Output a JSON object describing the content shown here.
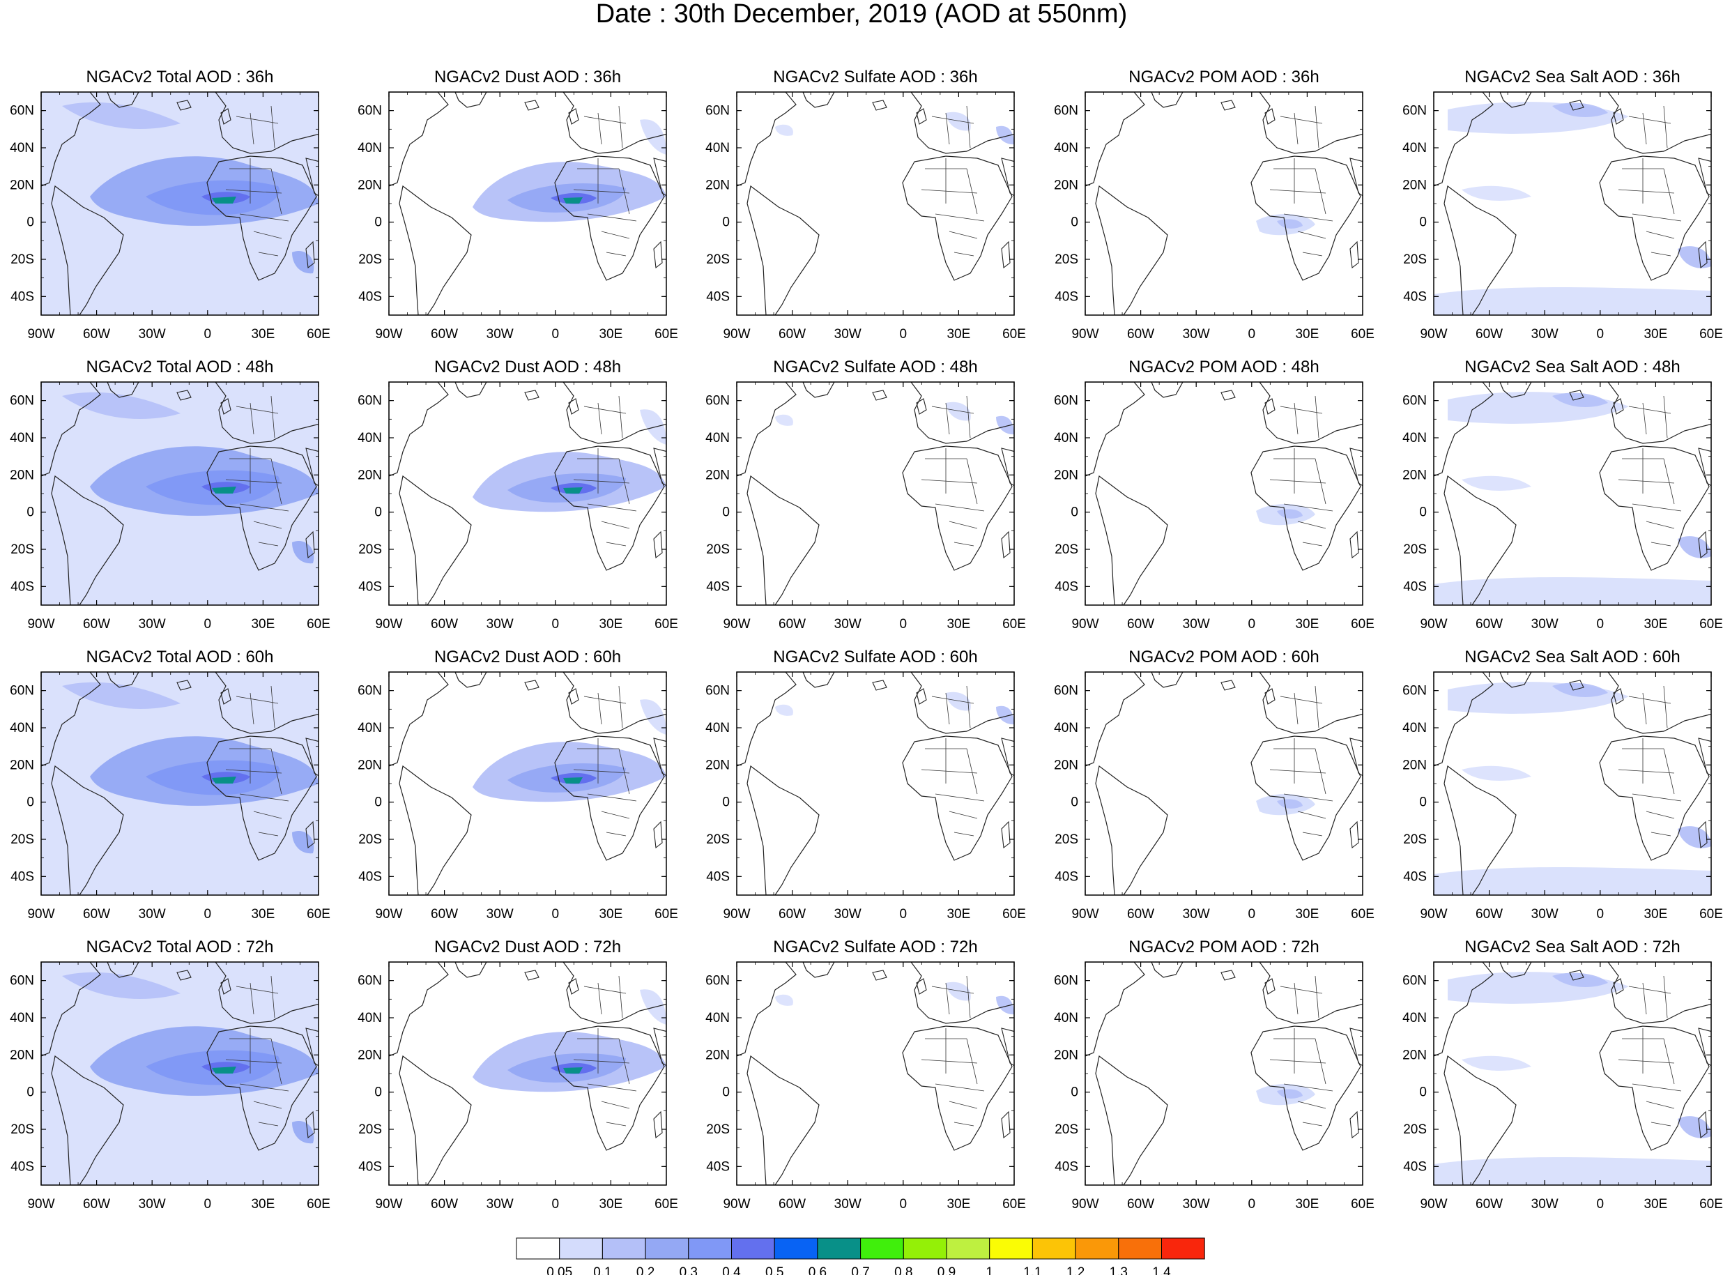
{
  "figure": {
    "title": "Date : 30th December, 2019 (AOD at 550nm)"
  },
  "panel_titles": [
    [
      "NGACv2 Total AOD : 36h",
      "NGACv2 Dust AOD : 36h",
      "NGACv2 Sulfate AOD : 36h",
      "NGACv2 POM AOD : 36h",
      "NGACv2 Sea Salt AOD : 36h"
    ],
    [
      "NGACv2 Total AOD : 48h",
      "NGACv2 Dust AOD : 48h",
      "NGACv2 Sulfate AOD : 48h",
      "NGACv2 POM AOD : 48h",
      "NGACv2 Sea Salt AOD : 48h"
    ],
    [
      "NGACv2 Total AOD : 60h",
      "NGACv2 Dust AOD : 60h",
      "NGACv2 Sulfate AOD : 60h",
      "NGACv2 POM AOD : 60h",
      "NGACv2 Sea Salt AOD : 60h"
    ],
    [
      "NGACv2 Total AOD : 72h",
      "NGACv2 Dust AOD : 72h",
      "NGACv2 Sulfate AOD : 72h",
      "NGACv2 POM AOD : 72h",
      "NGACv2 Sea Salt  AOD : 72h"
    ]
  ],
  "map_axes": {
    "lon_ticks": [
      "90W",
      "60W",
      "30W",
      "0",
      "30E",
      "60E"
    ],
    "lat_ticks": [
      "60N",
      "40N",
      "20N",
      "0",
      "20S",
      "40S"
    ],
    "lon_range": [
      -90,
      60
    ],
    "lat_range": [
      -50,
      70
    ]
  },
  "colorbar": {
    "labels": [
      "0.05",
      "0.1",
      "0.2",
      "0.3",
      "0.4",
      "0.5",
      "0.6",
      "0.7",
      "0.8",
      "0.9",
      "1",
      "1.1",
      "1.2",
      "1.3",
      "1.4"
    ],
    "colors": [
      "#ffffff",
      "#d4dcfc",
      "#b4c0f8",
      "#94a8f4",
      "#8098f6",
      "#6370ee",
      "#0863f4",
      "#089088",
      "#40ef0c",
      "#94f007",
      "#bef040",
      "#fafc05",
      "#fcc406",
      "#fa9808",
      "#f8700a",
      "#f9260c"
    ]
  }
}
